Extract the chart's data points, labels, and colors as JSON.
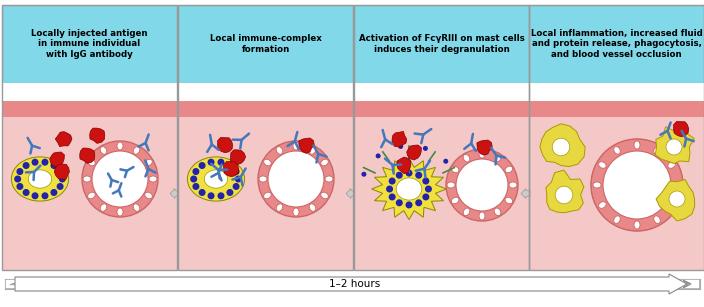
{
  "fig_width": 7.04,
  "fig_height": 3.07,
  "dpi": 100,
  "bg_color": "#ffffff",
  "header_bg": "#80d8e8",
  "skin_color": "#e88888",
  "tissue_color": "#f5c8c8",
  "white": "#ffffff",
  "panel_titles": [
    "Locally injected antigen\nin immune individual\nwith IgG antibody",
    "Local immune-complex\nformation",
    "Activation of FcγRIII on mast cells\ninduces their degranulation",
    "Local inflammation, increased fluid\nand protein release, phagocytosis,\nand blood vessel occlusion"
  ],
  "bottom_label": "1–2 hours",
  "antigen_color": "#cc1111",
  "antibody_color": "#4477bb",
  "mast_yellow": "#f0e040",
  "mast_dot": "#2222aa",
  "vessel_pink": "#e88888",
  "vessel_border": "#cc6666",
  "vessel_dot": "#cc3333",
  "macrophage_color": "#e8d840",
  "border_color": "#999999"
}
